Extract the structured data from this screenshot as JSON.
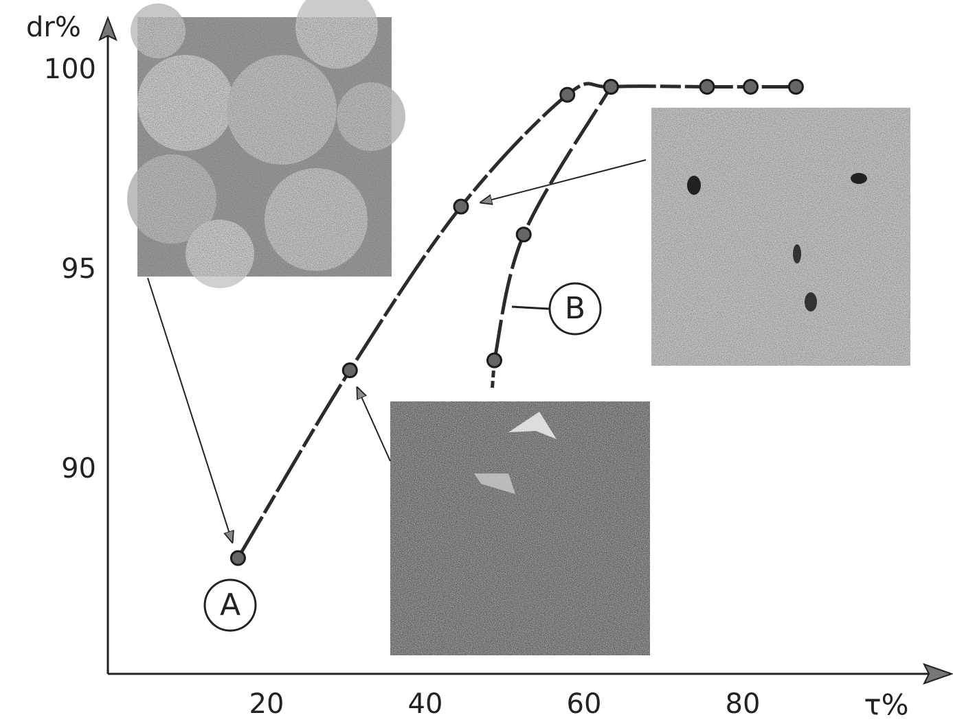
{
  "chart_data": {
    "type": "line",
    "x_label": "τ%",
    "y_label": "dr%",
    "series": [
      {
        "name": "A",
        "color": "#2b2b2b",
        "x": [
          16.4,
          30.5,
          44.5,
          57.9,
          63.4,
          75.5,
          81.0,
          86.7
        ],
        "values": [
          87.8,
          92.5,
          96.6,
          99.4,
          99.6,
          99.6,
          99.6,
          99.6
        ]
      },
      {
        "name": "B",
        "color": "#2b2b2b",
        "x": [
          48.7,
          52.4,
          63.4
        ],
        "values": [
          92.75,
          95.9,
          99.6
        ]
      }
    ],
    "xlim": [
      0,
      106
    ],
    "xticks": [
      20,
      40,
      60,
      80
    ],
    "ylim": [
      84.9,
      101.2
    ],
    "yticks": [
      90,
      95,
      100
    ]
  }
}
